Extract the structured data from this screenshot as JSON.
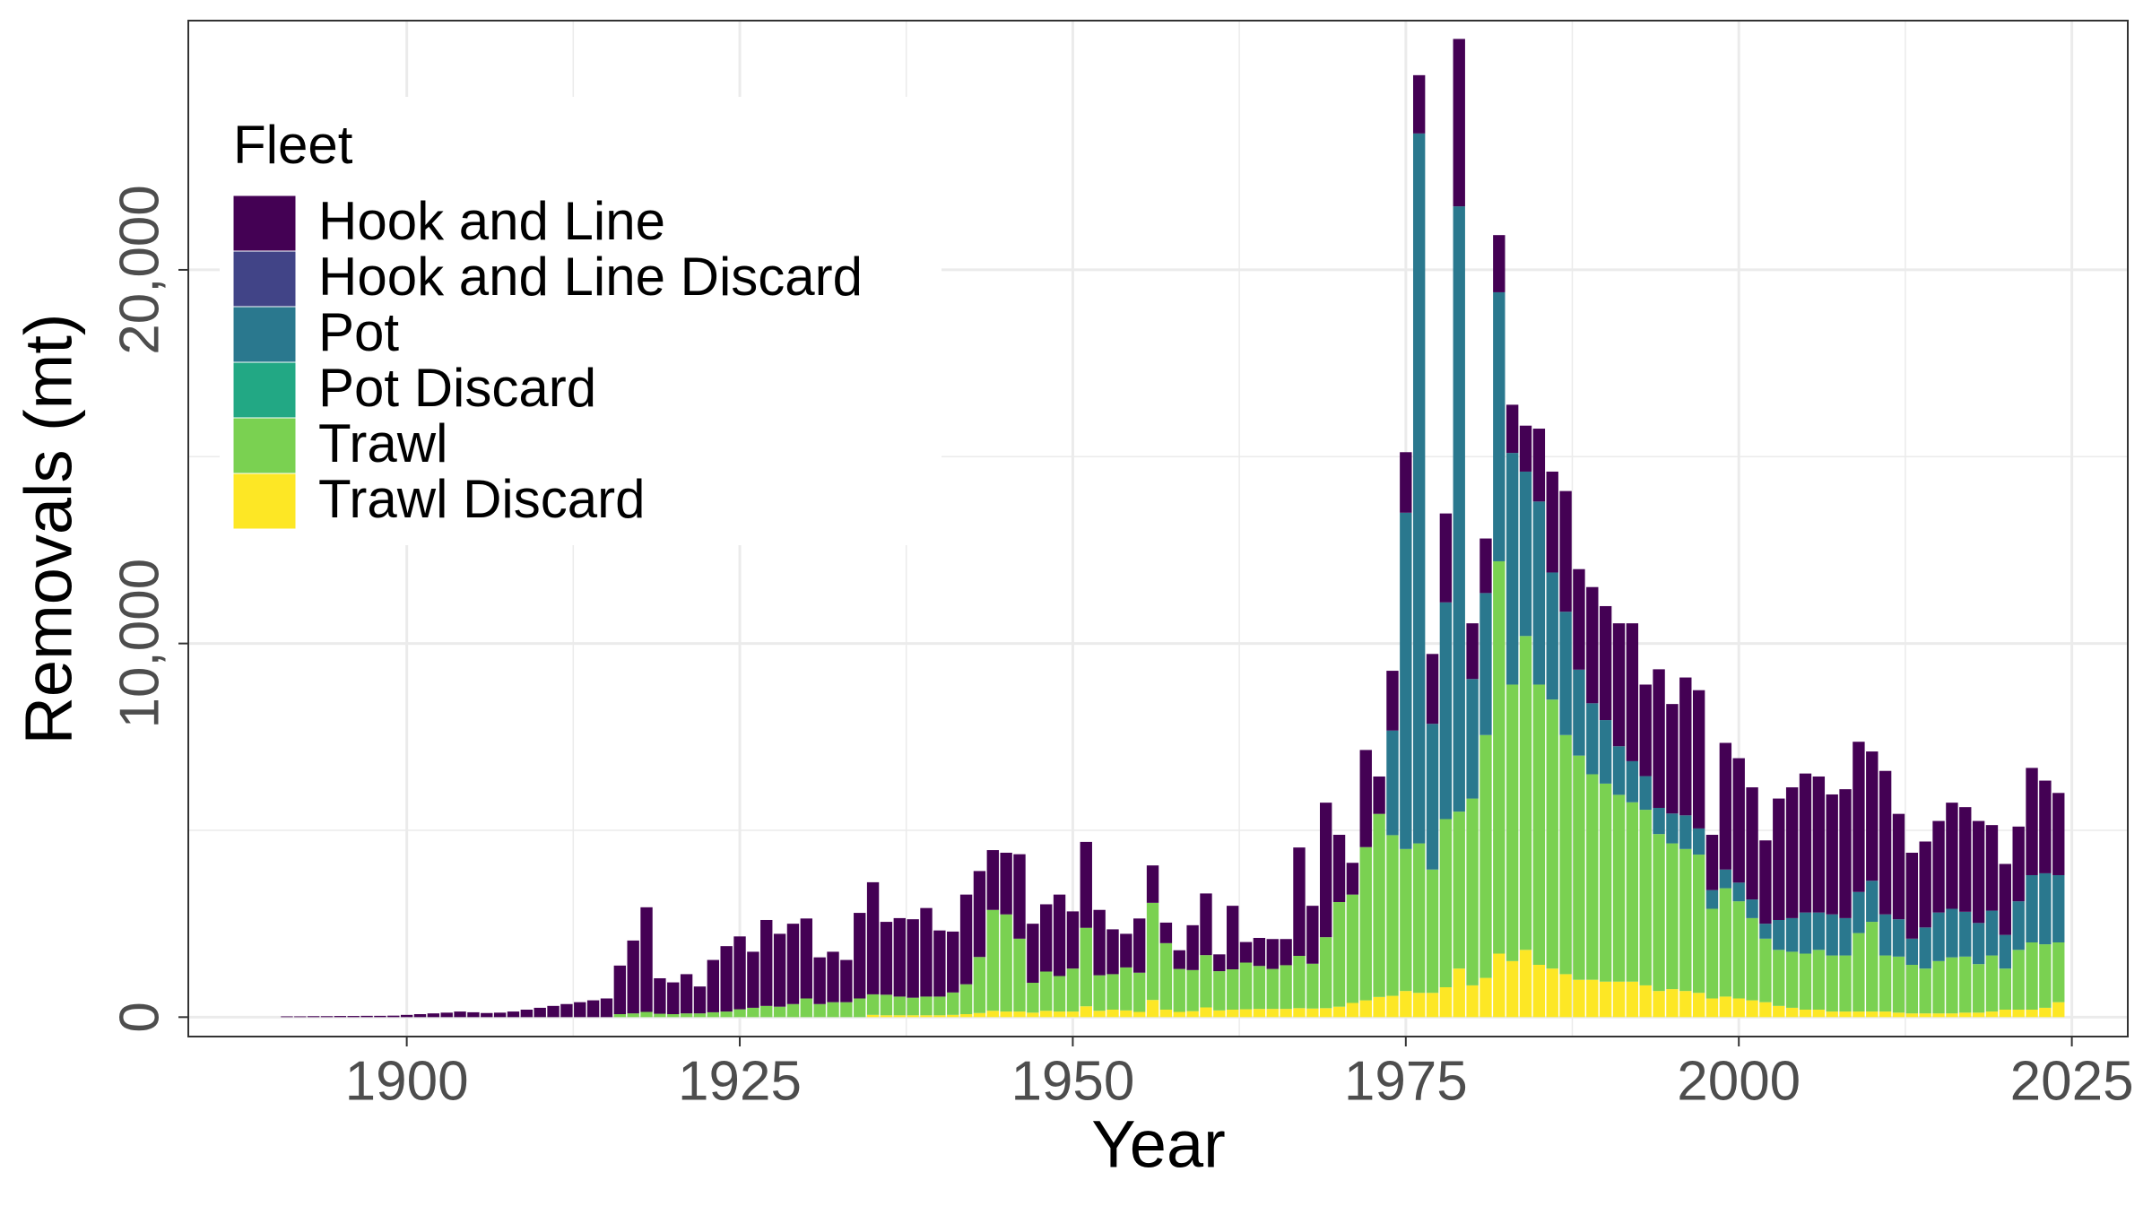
{
  "chart_data": {
    "type": "stacked_bar",
    "x_label": "Year",
    "y_label": "Removals (mt)",
    "legend_title": "Fleet",
    "legend_position": "top-left",
    "grid": true,
    "xlim": [
      1883.6,
      2029.2
    ],
    "xticks": [
      1900,
      1925,
      1950,
      1975,
      2000,
      2025
    ],
    "ylim": [
      -520,
      26670
    ],
    "yticks": [
      0,
      {
        "value": 10000,
        "label": "10,000"
      },
      {
        "value": 20000,
        "label": "20,000"
      }
    ],
    "x": [
      1891,
      1892,
      1893,
      1894,
      1895,
      1896,
      1897,
      1898,
      1899,
      1900,
      1901,
      1902,
      1903,
      1904,
      1905,
      1906,
      1907,
      1908,
      1909,
      1910,
      1911,
      1912,
      1913,
      1914,
      1915,
      1916,
      1917,
      1918,
      1919,
      1920,
      1921,
      1922,
      1923,
      1924,
      1925,
      1926,
      1927,
      1928,
      1929,
      1930,
      1931,
      1932,
      1933,
      1934,
      1935,
      1936,
      1937,
      1938,
      1939,
      1940,
      1941,
      1942,
      1943,
      1944,
      1945,
      1946,
      1947,
      1948,
      1949,
      1950,
      1951,
      1952,
      1953,
      1954,
      1955,
      1956,
      1957,
      1958,
      1959,
      1960,
      1961,
      1962,
      1963,
      1964,
      1965,
      1966,
      1967,
      1968,
      1969,
      1970,
      1971,
      1972,
      1973,
      1974,
      1975,
      1976,
      1977,
      1978,
      1979,
      1980,
      1981,
      1982,
      1983,
      1984,
      1985,
      1986,
      1987,
      1988,
      1989,
      1990,
      1991,
      1992,
      1993,
      1994,
      1995,
      1996,
      1997,
      1998,
      1999,
      2000,
      2001,
      2002,
      2003,
      2004,
      2005,
      2006,
      2007,
      2008,
      2009,
      2010,
      2011,
      2012,
      2013,
      2014,
      2015,
      2016,
      2017,
      2018,
      2019,
      2020,
      2021,
      2022,
      2023,
      2024
    ],
    "series": [
      {
        "name": "Hook and Line",
        "color": "#440154",
        "values": [
          20,
          20,
          25,
          25,
          30,
          30,
          35,
          35,
          40,
          60,
          80,
          100,
          120,
          150,
          130,
          110,
          120,
          150,
          200,
          250,
          300,
          350,
          400,
          450,
          500,
          1300,
          1950,
          2800,
          950,
          850,
          1050,
          720,
          1400,
          1750,
          1950,
          1500,
          2300,
          1950,
          2150,
          2140,
          1250,
          1350,
          1130,
          2290,
          3000,
          1950,
          2100,
          2100,
          2370,
          1770,
          1630,
          2400,
          2300,
          1600,
          1650,
          2260,
          1580,
          1800,
          2180,
          1530,
          2300,
          1750,
          1200,
          900,
          1450,
          1000,
          550,
          500,
          1200,
          1650,
          450,
          1700,
          550,
          750,
          800,
          700,
          2900,
          1550,
          3600,
          1800,
          850,
          2600,
          1000,
          1600,
          1620,
          1560,
          1870,
          2380,
          4480,
          1490,
          1460,
          1530,
          1290,
          1230,
          1950,
          2700,
          3230,
          2690,
          3110,
          3050,
          3290,
          3690,
          2450,
          3710,
          2930,
          3690,
          3700,
          1480,
          3390,
          3330,
          3000,
          2230,
          3250,
          3500,
          3720,
          3640,
          3210,
          3450,
          4020,
          3460,
          3840,
          2820,
          2300,
          2300,
          2450,
          2840,
          2800,
          2730,
          2290,
          1900,
          2000,
          2870,
          2480,
          2200
        ]
      },
      {
        "name": "Hook and Line Discard",
        "color": "#414487",
        "values": [
          0,
          0,
          0,
          0,
          0,
          0,
          0,
          0,
          0,
          0,
          0,
          0,
          0,
          0,
          0,
          0,
          0,
          0,
          0,
          0,
          0,
          0,
          0,
          0,
          0,
          0,
          0,
          0,
          0,
          0,
          0,
          0,
          0,
          0,
          0,
          0,
          0,
          0,
          0,
          0,
          0,
          0,
          0,
          0,
          0,
          0,
          0,
          0,
          0,
          0,
          0,
          0,
          0,
          0,
          0,
          0,
          0,
          0,
          0,
          0,
          0,
          0,
          0,
          0,
          0,
          0,
          0,
          0,
          0,
          0,
          0,
          0,
          0,
          0,
          0,
          0,
          0,
          0,
          0,
          0,
          0,
          0,
          0,
          0,
          0,
          0,
          0,
          0,
          0,
          0,
          0,
          0,
          0,
          0,
          0,
          0,
          0,
          0,
          0,
          0,
          0,
          0,
          0,
          0,
          0,
          0,
          0,
          0,
          0,
          0,
          0,
          0,
          0,
          0,
          0,
          0,
          0,
          0,
          0,
          0,
          0,
          0,
          0,
          0,
          0,
          0,
          0,
          0,
          0,
          0,
          0,
          0,
          0,
          0
        ]
      },
      {
        "name": "Pot",
        "color": "#2A788E",
        "values": [
          0,
          0,
          0,
          0,
          0,
          0,
          0,
          0,
          0,
          0,
          0,
          0,
          0,
          0,
          0,
          0,
          0,
          0,
          0,
          0,
          0,
          0,
          0,
          0,
          0,
          0,
          0,
          0,
          0,
          0,
          0,
          0,
          0,
          0,
          0,
          0,
          0,
          0,
          0,
          0,
          0,
          0,
          0,
          0,
          0,
          0,
          0,
          0,
          0,
          0,
          0,
          0,
          0,
          0,
          0,
          0,
          0,
          0,
          0,
          0,
          0,
          0,
          0,
          0,
          0,
          0,
          0,
          0,
          0,
          0,
          0,
          0,
          0,
          0,
          0,
          0,
          0,
          0,
          0,
          0,
          0,
          0,
          0,
          2800,
          9000,
          19000,
          3900,
          5800,
          16200,
          3200,
          3800,
          7200,
          6200,
          4400,
          4900,
          3400,
          3300,
          2300,
          1900,
          1700,
          1300,
          1100,
          900,
          700,
          800,
          900,
          700,
          500,
          500,
          500,
          500,
          400,
          800,
          900,
          1100,
          1000,
          1100,
          1000,
          1100,
          1100,
          1100,
          1000,
          700,
          1100,
          1300,
          1300,
          1200,
          1100,
          1200,
          900,
          1300,
          1800,
          1900,
          1800
        ]
      },
      {
        "name": "Pot Discard",
        "color": "#22A884",
        "values": [
          0,
          0,
          0,
          0,
          0,
          0,
          0,
          0,
          0,
          0,
          0,
          0,
          0,
          0,
          0,
          0,
          0,
          0,
          0,
          0,
          0,
          0,
          0,
          0,
          0,
          0,
          0,
          0,
          0,
          0,
          0,
          0,
          0,
          0,
          0,
          0,
          0,
          0,
          0,
          0,
          0,
          0,
          0,
          0,
          0,
          0,
          0,
          0,
          0,
          0,
          0,
          0,
          0,
          0,
          0,
          0,
          0,
          0,
          0,
          0,
          0,
          0,
          0,
          0,
          0,
          0,
          0,
          0,
          0,
          0,
          0,
          0,
          0,
          0,
          0,
          0,
          0,
          0,
          0,
          0,
          0,
          0,
          0,
          0,
          0,
          0,
          0,
          0,
          0,
          0,
          0,
          0,
          0,
          0,
          0,
          0,
          0,
          0,
          0,
          0,
          0,
          0,
          0,
          0,
          0,
          0,
          0,
          0,
          0,
          0,
          0,
          0,
          0,
          0,
          0,
          0,
          0,
          0,
          0,
          0,
          0,
          0,
          0,
          0,
          0,
          0,
          0,
          0,
          0,
          0,
          0,
          0,
          0,
          0
        ]
      },
      {
        "name": "Trawl",
        "color": "#7AD151",
        "values": [
          0,
          0,
          0,
          0,
          0,
          0,
          0,
          0,
          0,
          0,
          0,
          0,
          0,
          0,
          0,
          0,
          0,
          0,
          0,
          0,
          0,
          0,
          0,
          0,
          0,
          80,
          100,
          140,
          90,
          80,
          100,
          100,
          130,
          150,
          210,
          250,
          300,
          280,
          350,
          500,
          350,
          400,
          400,
          500,
          550,
          550,
          500,
          470,
          500,
          500,
          600,
          800,
          1500,
          2700,
          2600,
          1950,
          800,
          1050,
          950,
          1150,
          2100,
          950,
          950,
          1150,
          1050,
          2600,
          1780,
          1150,
          1100,
          1400,
          1050,
          1080,
          1250,
          1150,
          1070,
          1170,
          1400,
          1200,
          1900,
          2800,
          2900,
          4100,
          4900,
          4300,
          3800,
          4000,
          3300,
          4500,
          4200,
          5000,
          6500,
          10500,
          7400,
          8400,
          7500,
          7200,
          6400,
          6000,
          5500,
          5300,
          5000,
          4800,
          4700,
          4200,
          3900,
          3800,
          3700,
          2400,
          2900,
          2600,
          2200,
          1700,
          1500,
          1500,
          1500,
          1600,
          1500,
          1500,
          2100,
          2400,
          1500,
          1500,
          1300,
          1200,
          1400,
          1500,
          1500,
          1300,
          1500,
          1100,
          1600,
          1800,
          1700,
          1600
        ]
      },
      {
        "name": "Trawl Discard",
        "color": "#FDE725",
        "values": [
          0,
          0,
          0,
          0,
          0,
          0,
          0,
          0,
          0,
          0,
          0,
          0,
          0,
          0,
          0,
          0,
          0,
          0,
          0,
          0,
          0,
          0,
          0,
          0,
          0,
          0,
          0,
          0,
          0,
          0,
          0,
          0,
          0,
          0,
          0,
          0,
          0,
          0,
          0,
          0,
          0,
          0,
          0,
          0,
          60,
          50,
          50,
          50,
          50,
          50,
          60,
          80,
          110,
          170,
          150,
          150,
          120,
          170,
          150,
          150,
          290,
          170,
          200,
          180,
          140,
          460,
          200,
          140,
          160,
          260,
          180,
          200,
          210,
          220,
          220,
          220,
          240,
          230,
          240,
          280,
          380,
          450,
          540,
          570,
          700,
          650,
          650,
          800,
          1300,
          850,
          1050,
          1700,
          1500,
          1800,
          1400,
          1300,
          1150,
          1000,
          1000,
          950,
          950,
          950,
          850,
          700,
          750,
          700,
          650,
          500,
          550,
          500,
          450,
          400,
          300,
          250,
          200,
          200,
          150,
          150,
          150,
          150,
          150,
          120,
          100,
          100,
          100,
          100,
          120,
          120,
          150,
          200,
          200,
          200,
          250,
          400
        ]
      }
    ]
  }
}
